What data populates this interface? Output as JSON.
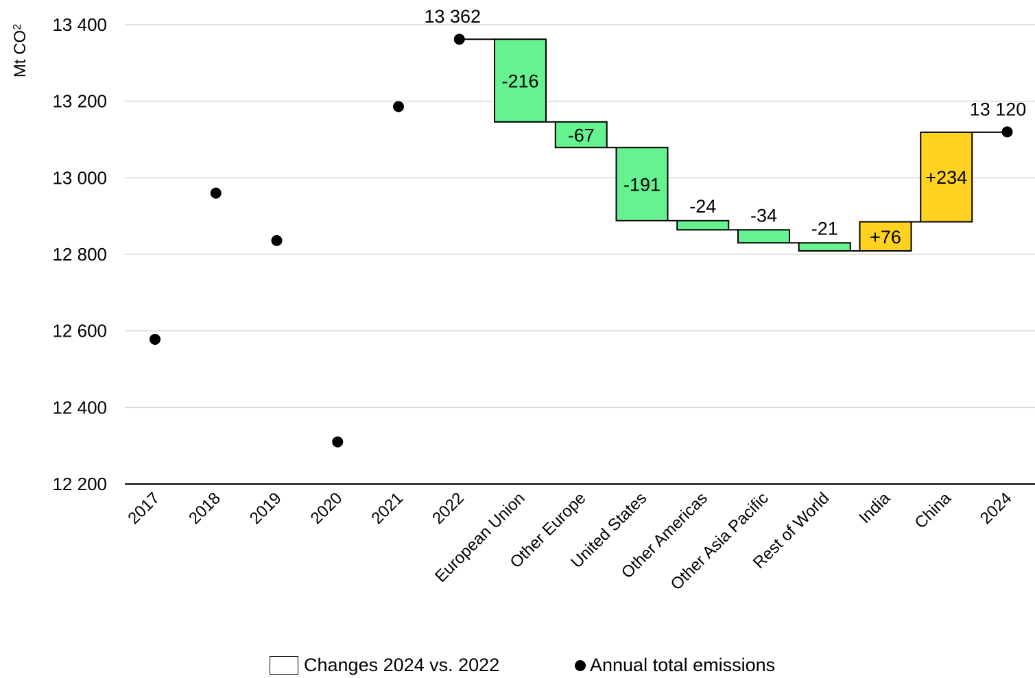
{
  "chart_data": {
    "type": "waterfall",
    "ylabel": "Mt CO",
    "ylabel_subscript": "2",
    "ylim": [
      12200,
      13400
    ],
    "yticks": [
      12200,
      12400,
      12600,
      12800,
      13000,
      13200,
      13400
    ],
    "ytick_labels": [
      "12 200",
      "12 400",
      "12 600",
      "12 800",
      "13 000",
      "13 200",
      "13 400"
    ],
    "grid": "horizontal",
    "categories": [
      "2017",
      "2018",
      "2019",
      "2020",
      "2021",
      "2022",
      "European Union",
      "Other Europe",
      "United States",
      "Other Americas",
      "Other Asia Pacific",
      "Rest of World",
      "India",
      "China",
      "2024"
    ],
    "annual_totals": [
      {
        "category": "2017",
        "value": 12578
      },
      {
        "category": "2018",
        "value": 12960
      },
      {
        "category": "2019",
        "value": 12836
      },
      {
        "category": "2020",
        "value": 12310
      },
      {
        "category": "2021",
        "value": 13186
      },
      {
        "category": "2022",
        "value": 13362,
        "label": "13 362"
      },
      {
        "category": "2024",
        "value": 13120,
        "label": "13 120"
      }
    ],
    "changes_start": 13362,
    "changes": [
      {
        "category": "European Union",
        "value": -216,
        "label": "-216",
        "color": "#66F291",
        "label_pos": "inside"
      },
      {
        "category": "Other Europe",
        "value": -67,
        "label": "-67",
        "color": "#66F291",
        "label_pos": "inside"
      },
      {
        "category": "United States",
        "value": -191,
        "label": "-191",
        "color": "#66F291",
        "label_pos": "inside"
      },
      {
        "category": "Other Americas",
        "value": -24,
        "label": "-24",
        "color": "#66F291",
        "label_pos": "above"
      },
      {
        "category": "Other Asia Pacific",
        "value": -34,
        "label": "-34",
        "color": "#66F291",
        "label_pos": "above"
      },
      {
        "category": "Rest of World",
        "value": -21,
        "label": "-21",
        "color": "#66F291",
        "label_pos": "above"
      },
      {
        "category": "India",
        "value": 76,
        "label": "+76",
        "color": "#FFD21F",
        "label_pos": "inside"
      },
      {
        "category": "China",
        "value": 234,
        "label": "+234",
        "color": "#FFD21F",
        "label_pos": "inside"
      }
    ],
    "legend": {
      "position": "bottom",
      "changes_label": "Changes 2024 vs. 2022",
      "totals_label": "Annual total emissions"
    }
  }
}
